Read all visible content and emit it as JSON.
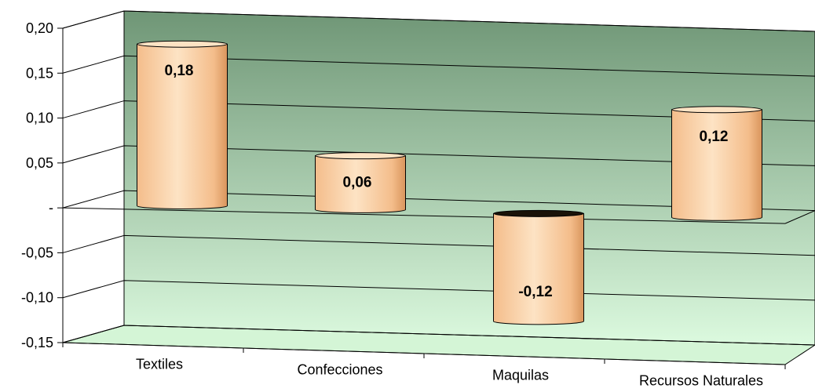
{
  "chart_data": {
    "type": "bar",
    "style": "3d-cylinder",
    "categories": [
      "Textiles",
      "Confecciones",
      "Maquilas",
      "Recursos Naturales"
    ],
    "values": [
      0.18,
      0.06,
      -0.12,
      0.12
    ],
    "data_labels": [
      "0,18",
      "0,06",
      "-0,12",
      "0,12"
    ],
    "y_ticks": [
      0.2,
      0.15,
      0.1,
      0.05,
      0,
      -0.05,
      -0.1,
      -0.15
    ],
    "y_tick_labels": [
      "0,20",
      "0,15",
      "0,10",
      "0,05",
      "-",
      "-0,05",
      "-0,10",
      "-0,15"
    ],
    "ylim": [
      -0.15,
      0.2
    ],
    "title": "",
    "xlabel": "",
    "ylabel": "",
    "grid": true,
    "legend": "none",
    "colors": {
      "bar_light": "#fde3c4",
      "bar_mid": "#f4bd8b",
      "bar_dark": "#d9955c",
      "wall_top": "#6f9676",
      "wall_bottom": "#dcfadf",
      "floor": "#d4f5d6"
    }
  }
}
